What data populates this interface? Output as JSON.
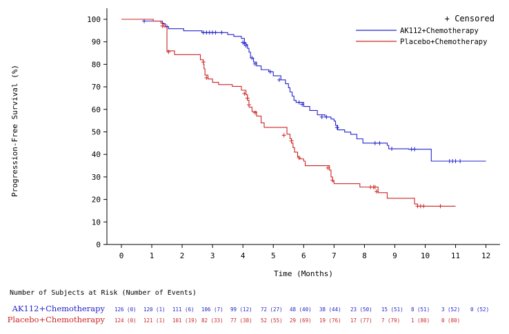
{
  "chart_data": {
    "type": "line",
    "xlabel": "Time (Months)",
    "ylabel": "Progression-Free Survival (%)",
    "xlim": [
      0,
      12
    ],
    "ylim": [
      0,
      100
    ],
    "xticks": [
      0,
      1,
      2,
      3,
      4,
      5,
      6,
      7,
      8,
      9,
      10,
      11,
      12
    ],
    "yticks": [
      0,
      10,
      20,
      30,
      40,
      50,
      60,
      70,
      80,
      90,
      100
    ],
    "grid": false,
    "legend_position": "top-right",
    "legend_title": "+ Censored",
    "series": [
      {
        "name": "AK112+Chemotherapy",
        "color": "#2222cc",
        "steps": [
          [
            0,
            100
          ],
          [
            0.7,
            100
          ],
          [
            0.75,
            99.2
          ],
          [
            1.3,
            99.2
          ],
          [
            1.35,
            98
          ],
          [
            1.45,
            96.7
          ],
          [
            1.55,
            95.8
          ],
          [
            2.0,
            95.8
          ],
          [
            2.05,
            94.9
          ],
          [
            2.6,
            94.9
          ],
          [
            2.65,
            94.1
          ],
          [
            3.45,
            94.1
          ],
          [
            3.5,
            93.2
          ],
          [
            3.7,
            92.4
          ],
          [
            3.95,
            91.5
          ],
          [
            4.05,
            89.7
          ],
          [
            4.1,
            88.8
          ],
          [
            4.15,
            87.1
          ],
          [
            4.2,
            85.4
          ],
          [
            4.25,
            82.8
          ],
          [
            4.35,
            81.0
          ],
          [
            4.45,
            79.3
          ],
          [
            4.6,
            77.6
          ],
          [
            4.85,
            76.7
          ],
          [
            5.0,
            74.9
          ],
          [
            5.25,
            73.1
          ],
          [
            5.4,
            71.4
          ],
          [
            5.5,
            69.6
          ],
          [
            5.55,
            67.7
          ],
          [
            5.62,
            65.9
          ],
          [
            5.68,
            64.0
          ],
          [
            5.75,
            63.1
          ],
          [
            6.0,
            61.3
          ],
          [
            6.2,
            59.5
          ],
          [
            6.45,
            57.6
          ],
          [
            6.7,
            56.6
          ],
          [
            6.9,
            55.7
          ],
          [
            7.0,
            54.8
          ],
          [
            7.05,
            52.9
          ],
          [
            7.12,
            50.9
          ],
          [
            7.35,
            49.9
          ],
          [
            7.55,
            48.9
          ],
          [
            7.75,
            46.9
          ],
          [
            7.95,
            45.0
          ],
          [
            8.5,
            45.0
          ],
          [
            8.75,
            44.0
          ],
          [
            8.8,
            42.5
          ],
          [
            9.4,
            42.5
          ],
          [
            9.45,
            42.3
          ],
          [
            10.15,
            42.3
          ],
          [
            10.2,
            37.0
          ],
          [
            12.0,
            37.0
          ]
        ],
        "censored": [
          [
            0.75,
            99.2
          ],
          [
            1.5,
            96.7
          ],
          [
            2.7,
            94.1
          ],
          [
            2.8,
            94.1
          ],
          [
            2.9,
            94.1
          ],
          [
            3.0,
            94.1
          ],
          [
            3.1,
            94.1
          ],
          [
            3.3,
            94.1
          ],
          [
            4.0,
            89.7
          ],
          [
            4.05,
            89.2
          ],
          [
            4.1,
            88.3
          ],
          [
            4.3,
            82.8
          ],
          [
            4.4,
            80.2
          ],
          [
            4.9,
            76.7
          ],
          [
            5.2,
            73.1
          ],
          [
            5.85,
            63.1
          ],
          [
            5.95,
            62.2
          ],
          [
            6.6,
            56.6
          ],
          [
            6.75,
            56.6
          ],
          [
            7.1,
            51.9
          ],
          [
            8.35,
            45.0
          ],
          [
            8.5,
            45.0
          ],
          [
            8.9,
            42.5
          ],
          [
            9.55,
            42.3
          ],
          [
            9.65,
            42.3
          ],
          [
            10.8,
            37.0
          ],
          [
            10.9,
            37.0
          ],
          [
            11.0,
            37.0
          ],
          [
            11.15,
            37.0
          ]
        ]
      },
      {
        "name": "Placebo+Chemotherapy",
        "color": "#cc2222",
        "steps": [
          [
            0,
            100
          ],
          [
            1.0,
            100
          ],
          [
            1.05,
            99.2
          ],
          [
            1.3,
            98.3
          ],
          [
            1.4,
            96.6
          ],
          [
            1.5,
            86.0
          ],
          [
            1.75,
            84.3
          ],
          [
            2.35,
            84.3
          ],
          [
            2.6,
            82.0
          ],
          [
            2.7,
            80.0
          ],
          [
            2.72,
            78.0
          ],
          [
            2.75,
            75.2
          ],
          [
            2.85,
            73.5
          ],
          [
            3.0,
            72.0
          ],
          [
            3.2,
            71.0
          ],
          [
            3.65,
            70.2
          ],
          [
            3.95,
            68.5
          ],
          [
            4.1,
            66.5
          ],
          [
            4.15,
            64.0
          ],
          [
            4.2,
            61.0
          ],
          [
            4.3,
            59.0
          ],
          [
            4.45,
            57.0
          ],
          [
            4.6,
            54.0
          ],
          [
            4.7,
            52.0
          ],
          [
            5.35,
            52.0
          ],
          [
            5.45,
            49.0
          ],
          [
            5.55,
            47.0
          ],
          [
            5.6,
            45.0
          ],
          [
            5.65,
            43.0
          ],
          [
            5.7,
            41.0
          ],
          [
            5.8,
            39.0
          ],
          [
            5.85,
            38.0
          ],
          [
            6.0,
            37.0
          ],
          [
            6.05,
            35.0
          ],
          [
            6.8,
            35.0
          ],
          [
            6.85,
            33.0
          ],
          [
            6.9,
            30.0
          ],
          [
            6.95,
            28.0
          ],
          [
            7.0,
            27.0
          ],
          [
            7.8,
            27.0
          ],
          [
            7.85,
            25.5
          ],
          [
            8.4,
            25.5
          ],
          [
            8.45,
            23.0
          ],
          [
            8.75,
            20.5
          ],
          [
            9.6,
            20.5
          ],
          [
            9.65,
            18.0
          ],
          [
            9.75,
            17.0
          ],
          [
            11.0,
            17.0
          ]
        ],
        "censored": [
          [
            1.35,
            97.0
          ],
          [
            1.55,
            85.5
          ],
          [
            2.7,
            81.0
          ],
          [
            2.8,
            74.0
          ],
          [
            4.05,
            67.0
          ],
          [
            4.15,
            65.0
          ],
          [
            4.2,
            62.0
          ],
          [
            4.4,
            58.5
          ],
          [
            5.35,
            48.5
          ],
          [
            5.6,
            46.0
          ],
          [
            5.85,
            38.5
          ],
          [
            6.8,
            34.0
          ],
          [
            6.95,
            28.5
          ],
          [
            8.2,
            25.5
          ],
          [
            8.3,
            25.5
          ],
          [
            8.35,
            25.5
          ],
          [
            8.4,
            23.5
          ],
          [
            9.75,
            17.0
          ],
          [
            9.85,
            17.0
          ],
          [
            9.95,
            17.0
          ],
          [
            10.5,
            17.0
          ]
        ]
      }
    ]
  },
  "risk_table": {
    "title": "Number of Subjects at Risk (Number of Events)",
    "rows": [
      {
        "label": "AK112+Chemotherapy",
        "color": "#2222cc",
        "cells": [
          "126 (0)",
          "120 (1)",
          "111 (6)",
          "106 (7)",
          "99 (12)",
          "72 (27)",
          "48 (40)",
          "38 (44)",
          "23 (50)",
          "15 (51)",
          "8 (51)",
          "3 (52)",
          "0 (52)"
        ]
      },
      {
        "label": "Placebo+Chemotherapy",
        "color": "#cc2222",
        "cells": [
          "124 (0)",
          "121 (1)",
          "101 (19)",
          "82 (33)",
          "77 (38)",
          "52 (55)",
          "29 (69)",
          "19 (76)",
          "17 (77)",
          "7 (79)",
          "1 (80)",
          "0 (80)"
        ]
      }
    ]
  }
}
